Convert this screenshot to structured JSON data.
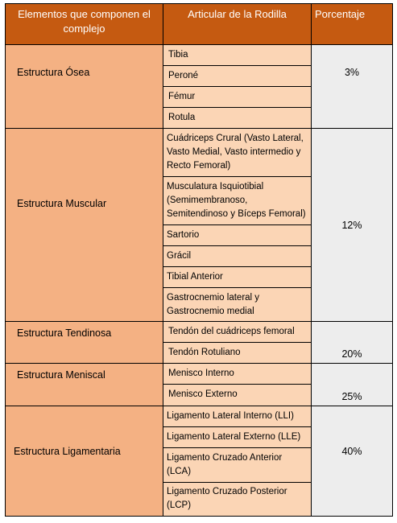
{
  "headers": {
    "col1": "Elementos que componen el complejo",
    "col2": "Articular de la Rodilla",
    "col3": "Porcentaje"
  },
  "groups": [
    {
      "name": "Estructura Ósea",
      "items": [
        "Tibia",
        "Peroné",
        "Fémur",
        "Rotula"
      ],
      "percent": "3%"
    },
    {
      "name": "Estructura Muscular",
      "items": [
        "Cuádriceps Crural (Vasto Lateral, Vasto Medial, Vasto intermedio y Recto Femoral)",
        "Musculatura Isquiotibial (Semimembranoso, Semitendinoso y Bíceps Femoral)",
        "Sartorio",
        "Grácil",
        "Tibial Anterior",
        "Gastrocnemio lateral y Gastrocnemio medial"
      ],
      "percent": "12%"
    },
    {
      "name": "Estructura Tendinosa",
      "items": [
        "Tendón del cuádriceps femoral",
        "Tendón Rotuliano"
      ],
      "percent": "20%"
    },
    {
      "name": "Estructura Meniscal",
      "items": [
        "Menisco Interno",
        "Menisco Externo"
      ],
      "percent": "25%"
    },
    {
      "name": "Estructura Ligamentaria",
      "items": [
        "Ligamento Lateral Interno (LLI)",
        "Ligamento Lateral Externo (LLE)",
        "Ligamento Cruzado Anterior (LCA)",
        "Ligamento Cruzado Posterior (LCP)"
      ],
      "percent": "40%"
    }
  ],
  "colors": {
    "header": "#c55a11",
    "group_cell": "#f4b183",
    "item_cell": "#fbd5b5",
    "percent_cell": "#ededed"
  }
}
